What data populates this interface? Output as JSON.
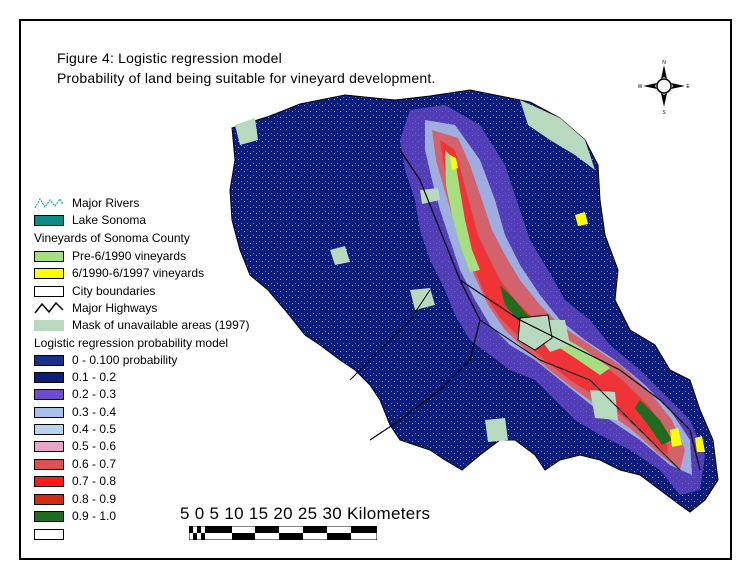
{
  "title": {
    "line1": "Figure 4:  Logistic regression model",
    "line2": "Probability of land being suitable for vineyard development."
  },
  "legend": {
    "rivers": "Major Rivers",
    "lake": "Lake Sonoma",
    "vineyards_header": "Vineyards of Sonoma County",
    "pre1990": "Pre-6/1990 vineyards",
    "v1990_1997": "6/1990-6/1997 vineyards",
    "city": "City boundaries",
    "highways": "Major Highways",
    "mask": "Mask of unavailable areas (1997)",
    "model_header": "Logistic regression probability model",
    "classes": [
      {
        "label": "0 - 0.100 probability",
        "color": "#1a2f8a"
      },
      {
        "label": "0.1 - 0.2",
        "color": "#0d1d7a"
      },
      {
        "label": "0.2 - 0.3",
        "color": "#6f4bd0"
      },
      {
        "label": "0.3 - 0.4",
        "color": "#a8c0ea"
      },
      {
        "label": "0.4 - 0.5",
        "color": "#b7d3ee"
      },
      {
        "label": "0.5 - 0.6",
        "color": "#e6a7c4"
      },
      {
        "label": "0.6 - 0.7",
        "color": "#e05050"
      },
      {
        "label": "0.7 - 0.8",
        "color": "#ff1a1a"
      },
      {
        "label": "0.8 - 0.9",
        "color": "#d42a10"
      },
      {
        "label": "0.9 - 1.0",
        "color": "#1f6b1f"
      },
      {
        "label": "",
        "color": "#ffffff"
      }
    ],
    "colors": {
      "lake": "#0c8a86",
      "pre1990": "#a5df7f",
      "v1990_1997": "#ffff00",
      "city": "#ffffff",
      "mask": "#b9d9bf"
    }
  },
  "scale": {
    "labels": "5   0   5  10 15 20 25 30   Kilometers"
  },
  "compass": {
    "n": "N",
    "s": "S",
    "e": "E",
    "w": "W"
  }
}
